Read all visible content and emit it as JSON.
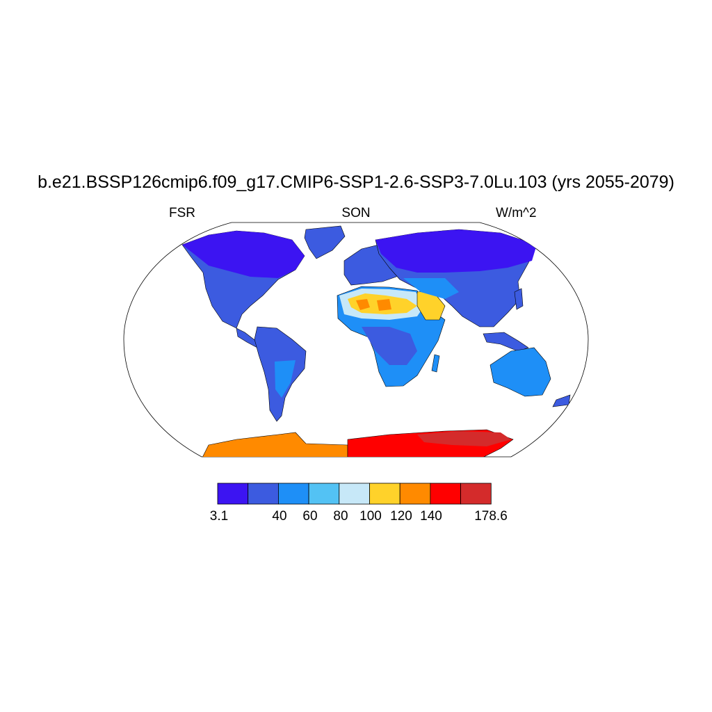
{
  "title": "b.e21.BSSP126cmip6.f09_g17.CMIP6-SSP1-2.6-SSP3-7.0Lu.103 (yrs 2055-2079)",
  "left_label": "FSR",
  "center_label": "SON",
  "right_label": "W/m^2",
  "colorbar": {
    "colors": [
      "#3c14f2",
      "#3c5be0",
      "#1e8ff7",
      "#53c2f4",
      "#c7e8f8",
      "#ffd22a",
      "#ff8a00",
      "#ff0000",
      "#d42b2b"
    ],
    "tick_labels": [
      "3.1",
      "40",
      "60",
      "80",
      "100",
      "120",
      "140",
      "178.6"
    ]
  }
}
